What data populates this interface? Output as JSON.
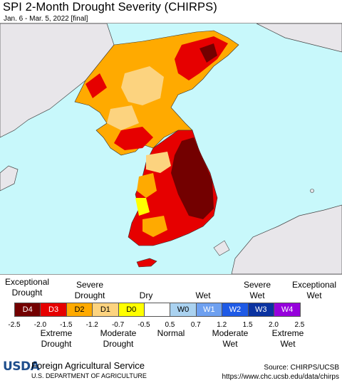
{
  "title": "SPI 2-Month Drought Severity (CHIRPS)",
  "subtitle": "Jan. 6 - Mar. 5, 2022 [final]",
  "map": {
    "region": "Korean Peninsula",
    "ocean_color": "#c8f8fb",
    "land_outside_color": "#e8e6ea"
  },
  "legend": {
    "top_labels": [
      {
        "id": "exceptional-drought",
        "text": "Exceptional\nDrought"
      },
      {
        "id": "severe-drought",
        "text": "Severe\nDrought"
      },
      {
        "id": "dry",
        "text": "Dry"
      },
      {
        "id": "wet",
        "text": "Wet"
      },
      {
        "id": "severe-wet",
        "text": "Severe\nWet"
      },
      {
        "id": "exceptional-wet",
        "text": "Exceptional\nWet"
      }
    ],
    "classes": [
      {
        "label": "D4",
        "color": "#730000",
        "text_color": "#ffffff"
      },
      {
        "label": "D3",
        "color": "#e60000",
        "text_color": "#ffffff"
      },
      {
        "label": "D2",
        "color": "#ffaa00",
        "text_color": "#000000"
      },
      {
        "label": "D1",
        "color": "#fcd37f",
        "text_color": "#000000"
      },
      {
        "label": "D0",
        "color": "#ffff00",
        "text_color": "#000000"
      },
      {
        "label": "",
        "color": "#ffffff",
        "text_color": "#000000"
      },
      {
        "label": "W0",
        "color": "#aad2f0",
        "text_color": "#000000"
      },
      {
        "label": "W1",
        "color": "#6ea0f0",
        "text_color": "#ffffff"
      },
      {
        "label": "W2",
        "color": "#1e5ae6",
        "text_color": "#ffffff"
      },
      {
        "label": "W3",
        "color": "#0a32a0",
        "text_color": "#ffffff"
      },
      {
        "label": "W4",
        "color": "#9600dc",
        "text_color": "#ffffff"
      }
    ],
    "ticks": [
      "-2.5",
      "-2.0",
      "-1.5",
      "-1.2",
      "-0.7",
      "-0.5",
      "0.5",
      "0.7",
      "1.2",
      "1.5",
      "2.0",
      "2.5"
    ],
    "bottom_labels": [
      {
        "id": "extreme-drought",
        "text": "Extreme\nDrought"
      },
      {
        "id": "moderate-drought",
        "text": "Moderate\nDrought"
      },
      {
        "id": "normal",
        "text": "Normal"
      },
      {
        "id": "moderate-wet",
        "text": "Moderate\nWet"
      },
      {
        "id": "extreme-wet",
        "text": "Extreme\nWet"
      }
    ]
  },
  "footer": {
    "logo_text": "USDA",
    "org_name": "Foreign Agricultural Service",
    "dept": "U.S. DEPARTMENT OF AGRICULTURE",
    "source": "Source: CHIRPS/UCSB",
    "url": "https://www.chc.ucsb.edu/data/chirps"
  }
}
